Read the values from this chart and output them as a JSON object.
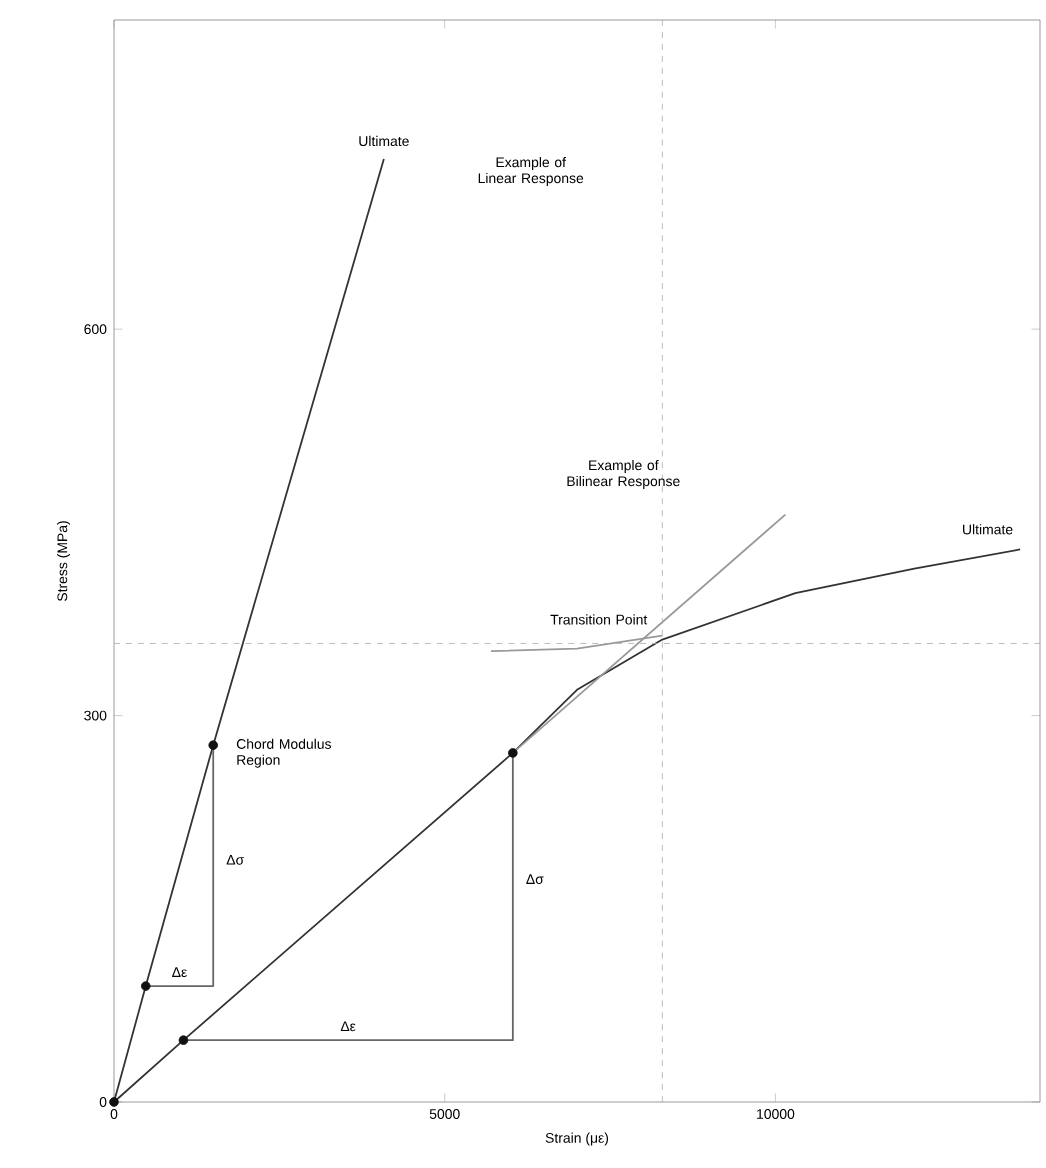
{
  "chart_data": {
    "type": "line",
    "xlabel": "Strain (με)",
    "ylabel": "Stress (MPa)",
    "xlim": [
      0,
      14000
    ],
    "ylim": [
      0,
      840
    ],
    "xticks": [
      0,
      5000,
      10000
    ],
    "yticks": [
      0,
      300,
      600
    ],
    "grid": false,
    "marker": "none",
    "series": [
      {
        "color": "#333333",
        "x": [
          0,
          480,
          1500,
          4080
        ],
        "values": [
          0,
          90,
          277,
          732
        ]
      },
      {
        "color": "#333333",
        "x": [
          0,
          1050,
          6030,
          7000,
          8290,
          10300,
          12100,
          13700
        ],
        "values": [
          0,
          48,
          271,
          320,
          359,
          395,
          414,
          429
        ]
      },
      {
        "color": "#999999",
        "x": [
          6030,
          10150
        ],
        "values": [
          271,
          456
        ]
      },
      {
        "color": "#999999",
        "x": [
          5700,
          7000,
          8290
        ],
        "values": [
          350,
          352,
          362
        ]
      },
      {
        "color": "#666666",
        "x": [
          480,
          1500,
          1500
        ],
        "values": [
          90,
          90,
          277
        ]
      },
      {
        "color": "#666666",
        "x": [
          1050,
          6030,
          6030
        ],
        "values": [
          48,
          48,
          271
        ]
      },
      {
        "type": "scatter",
        "color": "#111111",
        "marker": "circle",
        "x": [
          0,
          480,
          1500,
          1050,
          6030
        ],
        "values": [
          0,
          90,
          277,
          48,
          271
        ]
      }
    ],
    "ref_lines": [
      {
        "axis": "y",
        "value": 356,
        "color": "#aaaaaa",
        "line_style": "dashed"
      },
      {
        "axis": "x",
        "value": 8290,
        "color": "#aaaaaa",
        "line_style": "dashed"
      }
    ],
    "annotations": [
      {
        "text": "Ultimate",
        "x": 4080,
        "y": 732
      },
      "Example of Linear Response",
      "Example of Bilinear Response",
      {
        "text": "Transition Point",
        "x": 8290,
        "y": 359
      },
      {
        "text": "Ultimate",
        "x": 13700,
        "y": 429
      },
      {
        "text": "Chord Modulus Region",
        "x": 1500,
        "y": 277
      },
      {
        "text": "Δσ",
        "x": 1500,
        "y": 188
      },
      {
        "text": "Δε",
        "x": 990,
        "y": 90
      },
      {
        "text": "Δσ",
        "x": 6030,
        "y": 173
      },
      {
        "text": "Δε",
        "x": 3540,
        "y": 48
      }
    ]
  }
}
